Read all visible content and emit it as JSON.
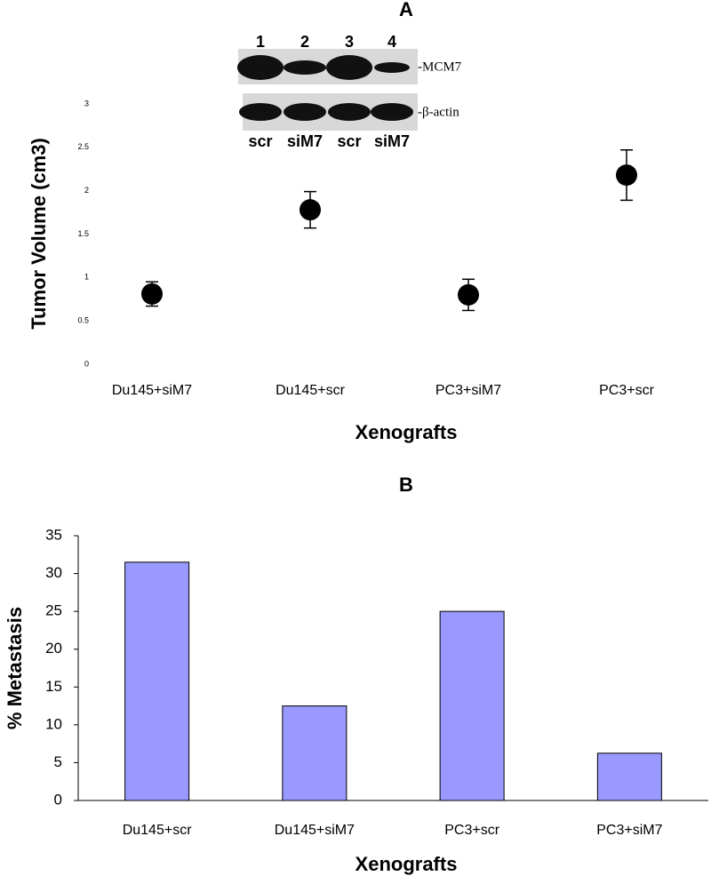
{
  "chart_data": [
    {
      "type": "errorbar",
      "title": "A",
      "x_label": "Xenografts",
      "y_label": "Tumor Volume (cm3)",
      "categories": [
        "Du145+siM7",
        "Du145+scr",
        "PC3+siM7",
        "PC3+scr"
      ],
      "values": [
        0.81,
        1.78,
        0.8,
        2.18
      ],
      "errors": [
        0.14,
        0.21,
        0.18,
        0.29
      ],
      "color": "#000000",
      "ylim": [
        0,
        3
      ],
      "yticks": [
        0,
        0.5,
        1,
        1.5,
        2,
        2.5,
        3
      ],
      "grid": false,
      "inset": {
        "lanes": [
          "1",
          "2",
          "3",
          "4"
        ],
        "proteins": [
          "-MCM7",
          "-β-actin"
        ],
        "conditions": [
          "scr",
          "siM7",
          "scr",
          "siM7"
        ]
      }
    },
    {
      "type": "bar",
      "title": "B",
      "x_label": "Xenografts",
      "y_label": "% Metastasis",
      "categories": [
        "Du145+scr",
        "Du145+siM7",
        "PC3+scr",
        "PC3+siM7"
      ],
      "values": [
        31.5,
        12.5,
        25,
        6.25
      ],
      "color": "#9999ff",
      "ylim": [
        0,
        35
      ],
      "yticks": [
        0,
        5,
        10,
        15,
        20,
        25,
        30,
        35
      ],
      "grid": false
    }
  ]
}
